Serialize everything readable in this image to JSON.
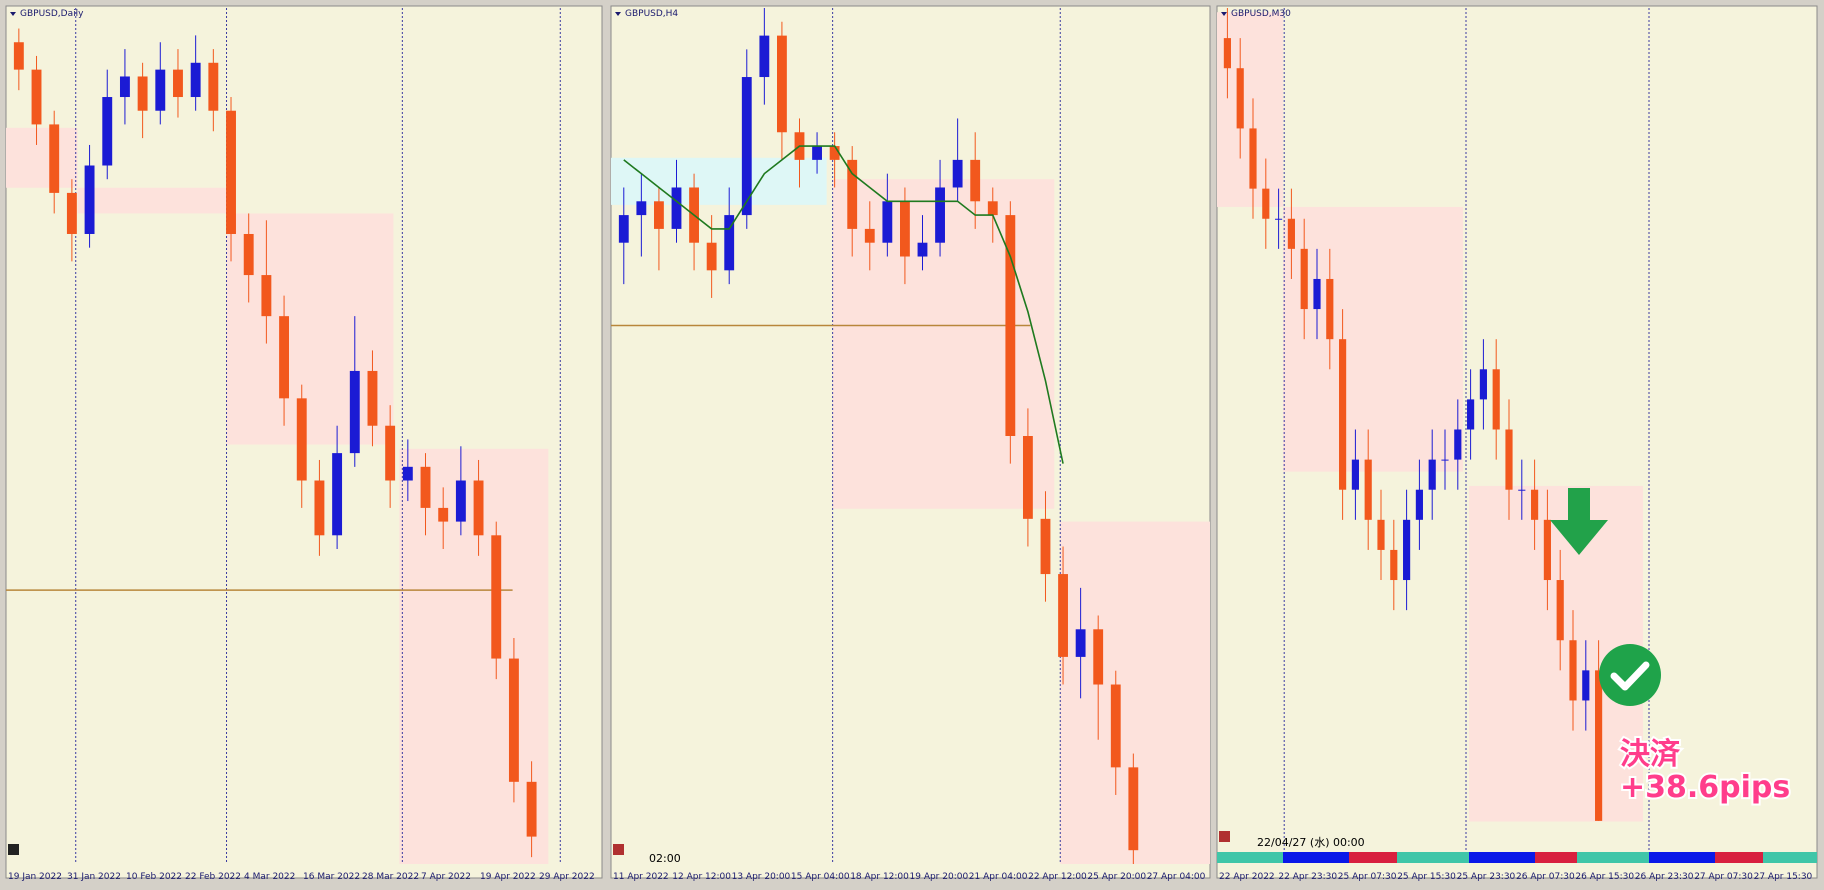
{
  "panels": [
    {
      "title": "GBPUSD,Daily",
      "ylim": [
        1.25,
        1.375
      ],
      "hline": 1.29,
      "x_labels": [
        "19 Jan 2022",
        "31 Jan 2022",
        "10 Feb 2022",
        "22 Feb 2022",
        "4 Mar 2022",
        "16 Mar 2022",
        "28 Mar 2022",
        "7 Apr 2022",
        "19 Apr 2022",
        "29 Apr 2022"
      ],
      "ohlc": [
        [
          1.37,
          1.372,
          1.363,
          1.366
        ],
        [
          1.366,
          1.368,
          1.355,
          1.358
        ],
        [
          1.358,
          1.36,
          1.345,
          1.348
        ],
        [
          1.348,
          1.35,
          1.338,
          1.342
        ],
        [
          1.342,
          1.355,
          1.34,
          1.352
        ],
        [
          1.352,
          1.366,
          1.35,
          1.362
        ],
        [
          1.362,
          1.369,
          1.358,
          1.365
        ],
        [
          1.365,
          1.367,
          1.356,
          1.36
        ],
        [
          1.36,
          1.37,
          1.358,
          1.366
        ],
        [
          1.366,
          1.369,
          1.359,
          1.362
        ],
        [
          1.362,
          1.371,
          1.36,
          1.367
        ],
        [
          1.367,
          1.369,
          1.357,
          1.36
        ],
        [
          1.36,
          1.362,
          1.338,
          1.342
        ],
        [
          1.342,
          1.345,
          1.332,
          1.336
        ],
        [
          1.336,
          1.344,
          1.326,
          1.33
        ],
        [
          1.33,
          1.333,
          1.314,
          1.318
        ],
        [
          1.318,
          1.32,
          1.302,
          1.306
        ],
        [
          1.306,
          1.309,
          1.295,
          1.298
        ],
        [
          1.298,
          1.314,
          1.296,
          1.31
        ],
        [
          1.31,
          1.33,
          1.308,
          1.322
        ],
        [
          1.322,
          1.325,
          1.311,
          1.314
        ],
        [
          1.314,
          1.317,
          1.302,
          1.306
        ],
        [
          1.306,
          1.312,
          1.303,
          1.308
        ],
        [
          1.308,
          1.31,
          1.298,
          1.302
        ],
        [
          1.302,
          1.305,
          1.296,
          1.3
        ],
        [
          1.3,
          1.311,
          1.298,
          1.306
        ],
        [
          1.306,
          1.309,
          1.295,
          1.298
        ],
        [
          1.298,
          1.3,
          1.277,
          1.28
        ],
        [
          1.28,
          1.283,
          1.259,
          1.262
        ],
        [
          1.262,
          1.265,
          1.251,
          1.254
        ]
      ]
    },
    {
      "title": "GBPUSD,H4",
      "ylim": [
        1.255,
        1.317
      ],
      "hline": 1.294,
      "time_label": "02:00",
      "x_labels": [
        "11 Apr 2022",
        "12 Apr 12:00",
        "13 Apr 20:00",
        "15 Apr 04:00",
        "18 Apr 12:00",
        "19 Apr 20:00",
        "21 Apr 04:00",
        "22 Apr 12:00",
        "25 Apr 20:00",
        "27 Apr 04:00"
      ],
      "ohlc": [
        [
          1.3,
          1.304,
          1.297,
          1.302
        ],
        [
          1.302,
          1.305,
          1.299,
          1.303
        ],
        [
          1.303,
          1.304,
          1.298,
          1.301
        ],
        [
          1.301,
          1.306,
          1.3,
          1.304
        ],
        [
          1.304,
          1.305,
          1.298,
          1.3
        ],
        [
          1.3,
          1.302,
          1.296,
          1.298
        ],
        [
          1.298,
          1.304,
          1.297,
          1.302
        ],
        [
          1.302,
          1.314,
          1.301,
          1.312
        ],
        [
          1.312,
          1.317,
          1.31,
          1.315
        ],
        [
          1.315,
          1.316,
          1.306,
          1.308
        ],
        [
          1.308,
          1.309,
          1.304,
          1.306
        ],
        [
          1.306,
          1.308,
          1.305,
          1.307
        ],
        [
          1.307,
          1.308,
          1.304,
          1.306
        ],
        [
          1.306,
          1.307,
          1.299,
          1.301
        ],
        [
          1.301,
          1.303,
          1.298,
          1.3
        ],
        [
          1.3,
          1.305,
          1.299,
          1.303
        ],
        [
          1.303,
          1.304,
          1.297,
          1.299
        ],
        [
          1.299,
          1.302,
          1.298,
          1.3
        ],
        [
          1.3,
          1.306,
          1.299,
          1.304
        ],
        [
          1.304,
          1.309,
          1.303,
          1.306
        ],
        [
          1.306,
          1.308,
          1.301,
          1.303
        ],
        [
          1.303,
          1.304,
          1.3,
          1.302
        ],
        [
          1.302,
          1.303,
          1.284,
          1.286
        ],
        [
          1.286,
          1.288,
          1.278,
          1.28
        ],
        [
          1.28,
          1.282,
          1.274,
          1.276
        ],
        [
          1.276,
          1.278,
          1.268,
          1.27
        ],
        [
          1.27,
          1.275,
          1.267,
          1.272
        ],
        [
          1.272,
          1.273,
          1.264,
          1.268
        ],
        [
          1.268,
          1.269,
          1.26,
          1.262
        ],
        [
          1.262,
          1.263,
          1.255,
          1.256
        ]
      ],
      "ma": [
        1.306,
        1.305,
        1.304,
        1.303,
        1.302,
        1.301,
        1.301,
        1.303,
        1.305,
        1.306,
        1.307,
        1.307,
        1.307,
        1.305,
        1.304,
        1.303,
        1.303,
        1.303,
        1.303,
        1.303,
        1.302,
        1.302,
        1.299,
        1.295,
        1.29,
        1.284,
        null,
        null,
        null,
        null
      ]
    },
    {
      "title": "GBPUSD,M30",
      "ylim": [
        1.255,
        1.283
      ],
      "time_label": "22/04/27 (水) 00:00",
      "x_labels": [
        "22 Apr 2022",
        "22 Apr 23:30",
        "25 Apr 07:30",
        "25 Apr 15:30",
        "25 Apr 23:30",
        "26 Apr 07:30",
        "26 Apr 15:30",
        "26 Apr 23:30",
        "27 Apr 07:30",
        "27 Apr 15:30"
      ],
      "ohlc": [
        [
          1.282,
          1.283,
          1.28,
          1.281
        ],
        [
          1.281,
          1.282,
          1.278,
          1.279
        ],
        [
          1.279,
          1.28,
          1.276,
          1.277
        ],
        [
          1.277,
          1.278,
          1.275,
          1.276
        ],
        [
          1.276,
          1.277,
          1.275,
          1.276
        ],
        [
          1.276,
          1.277,
          1.274,
          1.275
        ],
        [
          1.275,
          1.276,
          1.272,
          1.273
        ],
        [
          1.273,
          1.275,
          1.272,
          1.274
        ],
        [
          1.274,
          1.275,
          1.271,
          1.272
        ],
        [
          1.272,
          1.273,
          1.266,
          1.267
        ],
        [
          1.267,
          1.269,
          1.266,
          1.268
        ],
        [
          1.268,
          1.269,
          1.265,
          1.266
        ],
        [
          1.266,
          1.267,
          1.264,
          1.265
        ],
        [
          1.265,
          1.266,
          1.263,
          1.264
        ],
        [
          1.264,
          1.267,
          1.263,
          1.266
        ],
        [
          1.266,
          1.268,
          1.265,
          1.267
        ],
        [
          1.267,
          1.269,
          1.266,
          1.268
        ],
        [
          1.268,
          1.269,
          1.267,
          1.268
        ],
        [
          1.268,
          1.27,
          1.267,
          1.269
        ],
        [
          1.269,
          1.271,
          1.268,
          1.27
        ],
        [
          1.27,
          1.272,
          1.269,
          1.271
        ],
        [
          1.271,
          1.272,
          1.268,
          1.269
        ],
        [
          1.269,
          1.27,
          1.266,
          1.267
        ],
        [
          1.267,
          1.268,
          1.266,
          1.267
        ],
        [
          1.267,
          1.268,
          1.265,
          1.266
        ],
        [
          1.266,
          1.267,
          1.263,
          1.264
        ],
        [
          1.264,
          1.265,
          1.261,
          1.262
        ],
        [
          1.262,
          1.263,
          1.259,
          1.26
        ],
        [
          1.26,
          1.262,
          1.259,
          1.261
        ],
        [
          1.261,
          1.262,
          1.256,
          1.256
        ]
      ]
    }
  ],
  "annotation": {
    "line1": "決済",
    "line2": "+38.6pips"
  }
}
